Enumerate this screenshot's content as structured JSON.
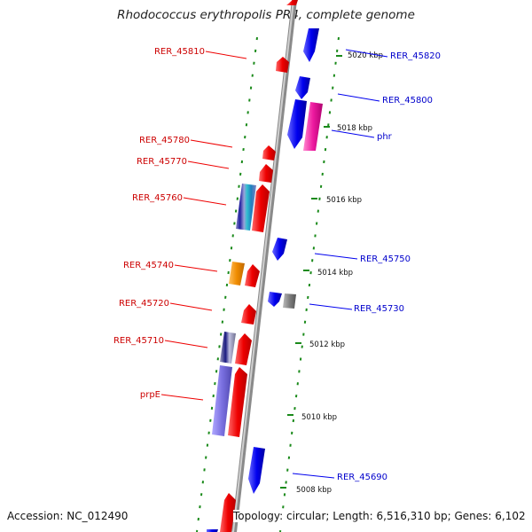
{
  "title": "Rhodococcus erythropolis PR4, complete genome",
  "footer": {
    "accession": "Accession: NC_012490",
    "topology": "Topology: circular; Length: 6,516,310 bp; Genes: 6,102"
  },
  "colors": {
    "forward": "#ee0000",
    "reverse": "#0000ee",
    "backbone": "#808080",
    "ticks": "#1a8a1a"
  },
  "scale_ticks": [
    "5020 kbp",
    "5018 kbp",
    "5016 kbp",
    "5014 kbp",
    "5012 kbp",
    "5010 kbp",
    "5008 kbp"
  ],
  "left_labels": [
    "RER_45810",
    "RER_45780",
    "RER_45770",
    "RER_45760",
    "RER_45740",
    "RER_45720",
    "RER_45710",
    "prpE"
  ],
  "right_labels": [
    "RER_45820",
    "RER_45800",
    "phr",
    "RER_45750",
    "RER_45730",
    "RER_45690"
  ]
}
